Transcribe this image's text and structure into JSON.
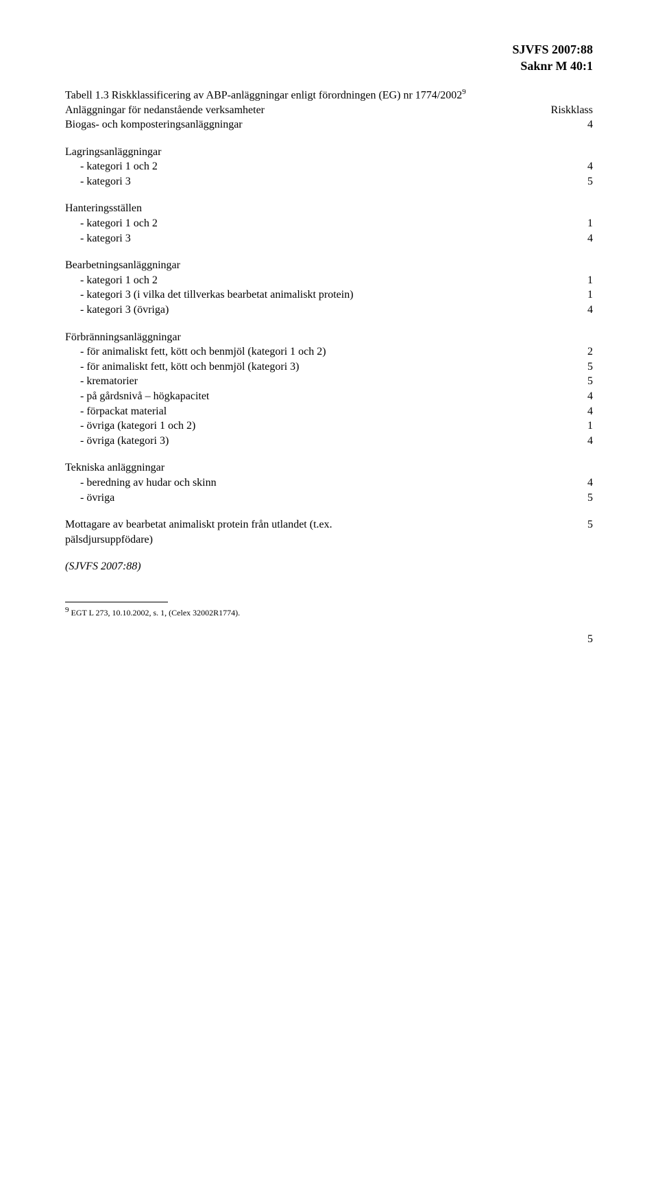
{
  "header": {
    "line1": "SJVFS 2007:88",
    "line2": "Saknr M 40:1"
  },
  "caption": {
    "title_line1": "Tabell 1.3 Riskklassificering av ABP-anläggningar enligt förordningen (EG) nr 1774/2002",
    "sup": "9",
    "subhead_left": "Anläggningar för nedanstående verksamheter",
    "subhead_right": "Riskklass"
  },
  "groups": [
    {
      "label": "Biogas- och komposteringsanläggningar",
      "value": 4,
      "top_margin": false,
      "items": []
    },
    {
      "label": "Lagringsanläggningar",
      "value": "",
      "top_margin": true,
      "items": [
        {
          "label": "- kategori 1 och 2",
          "value": 4
        },
        {
          "label": "- kategori 3",
          "value": 5
        }
      ]
    },
    {
      "label": "Hanteringsställen",
      "value": "",
      "top_margin": true,
      "items": [
        {
          "label": "- kategori 1 och 2",
          "value": 1
        },
        {
          "label": "- kategori 3",
          "value": 4
        }
      ]
    },
    {
      "label": "Bearbetningsanläggningar",
      "value": "",
      "top_margin": true,
      "items": [
        {
          "label": "- kategori 1 och 2",
          "value": 1
        },
        {
          "label": "- kategori 3 (i vilka det tillverkas bearbetat animaliskt protein)",
          "value": 1
        },
        {
          "label": "- kategori 3 (övriga)",
          "value": 4
        }
      ]
    },
    {
      "label": "Förbränningsanläggningar",
      "value": "",
      "top_margin": true,
      "items": [
        {
          "label": "- för animaliskt fett, kött och benmjöl (kategori 1 och 2)",
          "value": 2
        },
        {
          "label": "- för animaliskt fett, kött och benmjöl (kategori 3)",
          "value": 5
        },
        {
          "label": "- krematorier",
          "value": 5
        },
        {
          "label": "- på gårdsnivå – högkapacitet",
          "value": 4
        },
        {
          "label": "- förpackat material",
          "value": 4
        },
        {
          "label": "- övriga (kategori 1 och 2)",
          "value": 1
        },
        {
          "label": "- övriga (kategori 3)",
          "value": 4
        }
      ]
    },
    {
      "label": "Tekniska anläggningar",
      "value": "",
      "top_margin": true,
      "items": [
        {
          "label": "- beredning av hudar och skinn",
          "value": 4
        },
        {
          "label": "- övriga",
          "value": 5
        }
      ]
    },
    {
      "label": "Mottagare av bearbetat animaliskt protein från utlandet (t.ex. pälsdjursuppfödare)",
      "value": 5,
      "top_margin": true,
      "label_width": 500,
      "items": []
    }
  ],
  "citation": "(SJVFS 2007:88)",
  "footnote": {
    "sup": "9",
    "text": " EGT L 273, 10.10.2002, s. 1, (Celex 32002R1774)."
  },
  "page_number": "5"
}
